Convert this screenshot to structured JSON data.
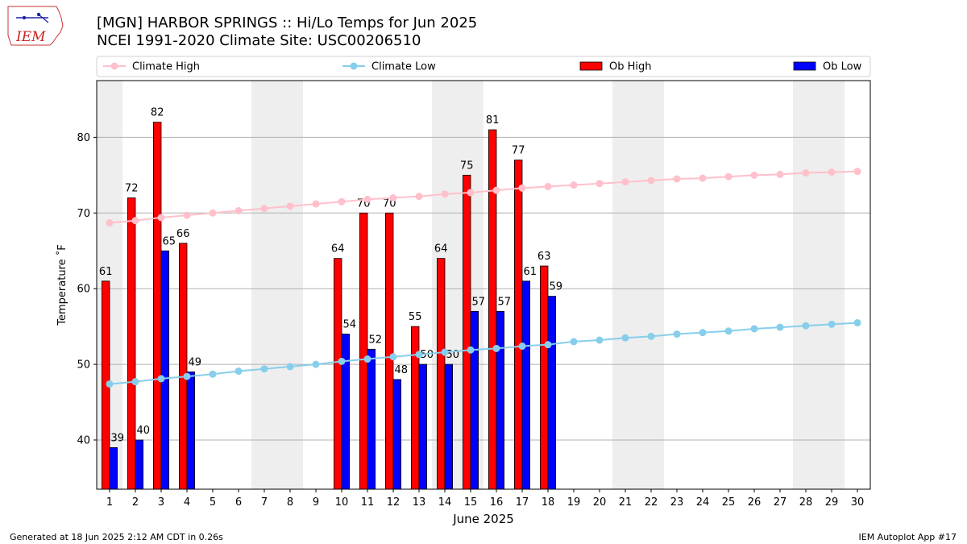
{
  "header": {
    "logo_text": "IEM",
    "title": "[MGN] HARBOR SPRINGS :: Hi/Lo Temps for Jun 2025",
    "subtitle": "NCEI 1991-2020 Climate Site: USC00206510"
  },
  "footer": {
    "generated": "Generated at 18 Jun 2025 2:12 AM CDT in 0.26s",
    "app": "IEM Autoplot App #17"
  },
  "colors": {
    "ob_high": "#ff0000",
    "ob_low": "#0000ff",
    "climate_high": "#ffc0cb",
    "climate_low": "#87ceeb",
    "weekend_shade": "#eeeeee",
    "grid": "#b0b0b0"
  },
  "chart_data": {
    "type": "bar",
    "xlabel": "June 2025",
    "ylabel": "Temperature ˚F",
    "ylim": [
      33.5,
      87.5
    ],
    "yticks": [
      40,
      50,
      60,
      70,
      80
    ],
    "xlim": [
      0.5,
      30.5
    ],
    "grid": "horizontal",
    "legend_placement": "top",
    "shaded_days": [
      [
        1,
        1
      ],
      [
        7,
        8
      ],
      [
        14,
        15
      ],
      [
        21,
        22
      ],
      [
        28,
        29
      ]
    ],
    "categories": [
      "1",
      "2",
      "3",
      "4",
      "5",
      "6",
      "7",
      "8",
      "9",
      "10",
      "11",
      "12",
      "13",
      "14",
      "15",
      "16",
      "17",
      "18",
      "19",
      "20",
      "21",
      "22",
      "23",
      "24",
      "25",
      "26",
      "27",
      "28",
      "29",
      "30"
    ],
    "series": [
      {
        "name": "Climate High",
        "kind": "line",
        "values": [
          68.7,
          69.0,
          69.4,
          69.7,
          70.0,
          70.3,
          70.6,
          70.9,
          71.2,
          71.5,
          71.8,
          72.0,
          72.2,
          72.5,
          72.7,
          73.0,
          73.3,
          73.5,
          73.7,
          73.9,
          74.1,
          74.3,
          74.5,
          74.6,
          74.8,
          75.0,
          75.1,
          75.3,
          75.4,
          75.5
        ]
      },
      {
        "name": "Climate Low",
        "kind": "line",
        "values": [
          47.4,
          47.7,
          48.1,
          48.4,
          48.7,
          49.1,
          49.4,
          49.7,
          50.0,
          50.4,
          50.7,
          51.0,
          51.3,
          51.6,
          51.9,
          52.1,
          52.4,
          52.6,
          53.0,
          53.2,
          53.5,
          53.7,
          54.0,
          54.2,
          54.4,
          54.7,
          54.9,
          55.1,
          55.3,
          55.5
        ]
      },
      {
        "name": "Ob High",
        "kind": "bar",
        "values": [
          61,
          72,
          82,
          66,
          null,
          null,
          null,
          null,
          null,
          64,
          70,
          70,
          55,
          64,
          75,
          81,
          77,
          63,
          null,
          null,
          null,
          null,
          null,
          null,
          null,
          null,
          null,
          null,
          null,
          null
        ]
      },
      {
        "name": "Ob Low",
        "kind": "bar",
        "values": [
          39,
          40,
          65,
          49,
          null,
          null,
          null,
          null,
          null,
          54,
          52,
          48,
          50,
          50,
          57,
          57,
          61,
          59,
          null,
          null,
          null,
          null,
          null,
          null,
          null,
          null,
          null,
          null,
          null,
          null
        ]
      }
    ]
  }
}
